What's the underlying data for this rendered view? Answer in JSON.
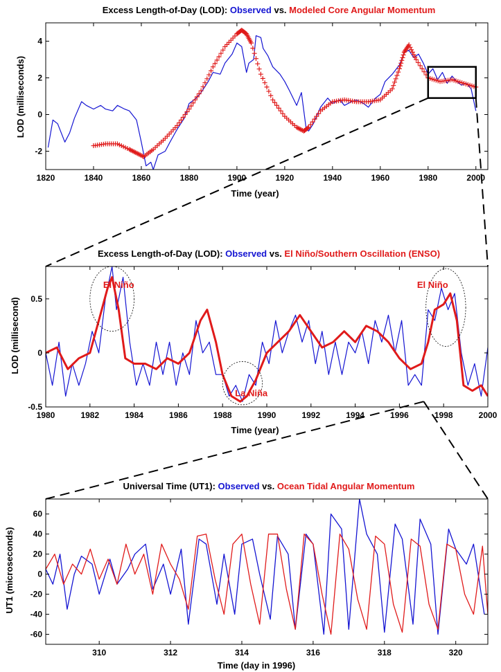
{
  "colors": {
    "observed": "#1414d2",
    "modeled": "#e01a1a",
    "axis": "#000000",
    "background": "#ffffff"
  },
  "chart_data": [
    {
      "type": "line",
      "title_prefix": "Excess Length-of-Day (LOD): ",
      "title_observed": "Observed",
      "title_mid": " vs. ",
      "title_modeled": "Modeled Core Angular Momentum",
      "xlabel": "Time (year)",
      "ylabel": "LOD (milliseconds)",
      "xlim": [
        1820,
        2005
      ],
      "ylim": [
        -3,
        5
      ],
      "xticks": [
        1820,
        1840,
        1860,
        1880,
        1900,
        1920,
        1940,
        1960,
        1980,
        2000
      ],
      "yticks": [
        -2,
        0,
        2,
        4
      ],
      "grid": false,
      "zoom_box": {
        "x": [
          1980,
          2000
        ],
        "y": [
          0.9,
          2.6
        ]
      },
      "series": [
        {
          "name": "Observed",
          "color": "#1414d2",
          "style": "line",
          "x": [
            1821,
            1823,
            1825,
            1828,
            1830,
            1832,
            1835,
            1837,
            1840,
            1843,
            1845,
            1848,
            1850,
            1853,
            1855,
            1858,
            1860,
            1862,
            1864,
            1865,
            1867,
            1870,
            1872,
            1875,
            1878,
            1880,
            1883,
            1885,
            1888,
            1890,
            1893,
            1895,
            1898,
            1900,
            1902,
            1904,
            1905,
            1907,
            1908,
            1910,
            1911,
            1913,
            1915,
            1918,
            1920,
            1922,
            1925,
            1927,
            1929,
            1930,
            1932,
            1935,
            1938,
            1940,
            1943,
            1945,
            1948,
            1950,
            1953,
            1955,
            1958,
            1960,
            1962,
            1965,
            1968,
            1970,
            1972,
            1974,
            1976,
            1978,
            1980,
            1982,
            1984,
            1986,
            1988,
            1990,
            1992,
            1994,
            1996,
            1998,
            2000
          ],
          "y": [
            -1.8,
            -0.3,
            -0.5,
            -1.5,
            -1.0,
            -0.2,
            0.7,
            0.5,
            0.3,
            0.5,
            0.3,
            0.2,
            0.5,
            0.3,
            0.2,
            -0.3,
            -1.5,
            -2.8,
            -2.6,
            -3.0,
            -2.2,
            -2.0,
            -1.5,
            -0.8,
            -0.2,
            0.6,
            0.9,
            1.2,
            1.8,
            2.3,
            2.2,
            2.8,
            3.3,
            3.9,
            3.7,
            2.3,
            2.8,
            3.0,
            4.3,
            4.2,
            3.6,
            3.2,
            2.6,
            2.2,
            1.8,
            1.3,
            0.5,
            1.2,
            -0.8,
            -0.9,
            -0.5,
            0.4,
            0.9,
            0.6,
            0.8,
            0.5,
            0.7,
            0.8,
            0.6,
            0.4,
            0.9,
            1.1,
            1.8,
            2.2,
            2.7,
            3.4,
            3.5,
            3.1,
            3.3,
            2.8,
            2.2,
            2.5,
            1.9,
            2.3,
            1.7,
            2.1,
            1.8,
            1.6,
            1.7,
            1.4,
            0.2
          ]
        },
        {
          "name": "Modeled Core Angular Momentum",
          "color": "#e01a1a",
          "style": "markers-plus",
          "x": [
            1840,
            1845,
            1850,
            1855,
            1858,
            1861,
            1865,
            1870,
            1875,
            1880,
            1885,
            1890,
            1895,
            1900,
            1902,
            1904,
            1906,
            1910,
            1915,
            1920,
            1925,
            1928,
            1930,
            1935,
            1940,
            1945,
            1950,
            1955,
            1960,
            1965,
            1968,
            1970,
            1972,
            1975,
            1980,
            1985,
            1990,
            1995,
            2000
          ],
          "y": [
            -1.7,
            -1.6,
            -1.6,
            -1.9,
            -2.1,
            -2.3,
            -1.9,
            -1.3,
            -0.6,
            0.3,
            1.3,
            2.6,
            3.7,
            4.4,
            4.6,
            4.4,
            3.9,
            2.2,
            0.8,
            -0.1,
            -0.7,
            -0.9,
            -0.7,
            0.2,
            0.7,
            0.8,
            0.7,
            0.7,
            0.8,
            1.4,
            2.5,
            3.4,
            3.8,
            3.0,
            2.0,
            1.8,
            1.9,
            1.7,
            1.5
          ]
        }
      ]
    },
    {
      "type": "line",
      "title_prefix": "Excess Length-of-Day (LOD): ",
      "title_observed": "Observed",
      "title_mid": " vs. ",
      "title_modeled": "El Niño/Southern Oscillation (ENSO)",
      "xlabel": "Time (year)",
      "ylabel": "LOD (millisecond)",
      "xlim": [
        1980,
        2000
      ],
      "ylim": [
        -0.5,
        0.8
      ],
      "xticks": [
        1980,
        1982,
        1984,
        1986,
        1988,
        1990,
        1992,
        1994,
        1996,
        1998,
        2000
      ],
      "yticks": [
        -0.5,
        0,
        0.5
      ],
      "grid": false,
      "annotations": [
        {
          "text": "El Niño",
          "x": 1983.3,
          "y": 0.6
        },
        {
          "text": "La Niña",
          "x": 1989.3,
          "y": -0.4
        },
        {
          "text": "El Niño",
          "x": 1997.5,
          "y": 0.6
        }
      ],
      "circles": [
        {
          "cx": 1983.0,
          "cy": 0.5,
          "rx": 1.0,
          "ry": 0.3
        },
        {
          "cx": 1988.9,
          "cy": -0.28,
          "rx": 0.9,
          "ry": 0.2
        },
        {
          "cx": 1998.1,
          "cy": 0.42,
          "rx": 0.9,
          "ry": 0.36
        }
      ],
      "series": [
        {
          "name": "Observed",
          "color": "#1414d2",
          "style": "line",
          "x": [
            1980.0,
            1980.3,
            1980.6,
            1980.9,
            1981.2,
            1981.5,
            1981.8,
            1982.1,
            1982.4,
            1982.7,
            1983.0,
            1983.2,
            1983.5,
            1983.8,
            1984.1,
            1984.4,
            1984.7,
            1985.0,
            1985.3,
            1985.6,
            1985.9,
            1986.2,
            1986.5,
            1986.8,
            1987.1,
            1987.4,
            1987.7,
            1988.0,
            1988.3,
            1988.6,
            1988.9,
            1989.2,
            1989.5,
            1989.8,
            1990.1,
            1990.4,
            1990.7,
            1991.0,
            1991.3,
            1991.6,
            1991.9,
            1992.2,
            1992.5,
            1992.8,
            1993.1,
            1993.4,
            1993.7,
            1994.0,
            1994.3,
            1994.6,
            1994.9,
            1995.2,
            1995.5,
            1995.8,
            1996.1,
            1996.4,
            1996.7,
            1997.0,
            1997.3,
            1997.6,
            1997.9,
            1998.2,
            1998.5,
            1998.8,
            1999.1,
            1999.4,
            1999.7,
            2000.0
          ],
          "y": [
            0.0,
            -0.3,
            0.1,
            -0.4,
            -0.1,
            -0.3,
            -0.1,
            0.2,
            0.0,
            0.5,
            0.8,
            0.4,
            0.7,
            0.1,
            -0.3,
            -0.1,
            -0.3,
            0.1,
            -0.2,
            0.1,
            -0.3,
            0.0,
            -0.2,
            0.3,
            0.0,
            0.1,
            -0.2,
            -0.2,
            -0.4,
            -0.3,
            -0.45,
            -0.2,
            -0.3,
            0.1,
            -0.1,
            0.3,
            0.0,
            0.2,
            0.35,
            0.1,
            0.3,
            -0.1,
            0.2,
            -0.2,
            0.1,
            -0.2,
            0.1,
            0.0,
            0.2,
            -0.1,
            0.3,
            0.1,
            0.35,
            0.0,
            0.3,
            -0.3,
            -0.2,
            -0.3,
            0.4,
            0.3,
            0.6,
            0.4,
            0.55,
            0.0,
            -0.3,
            -0.1,
            -0.4,
            0.05
          ]
        },
        {
          "name": "El Niño/Southern Oscillation (ENSO)",
          "color": "#e01a1a",
          "style": "line",
          "x": [
            1980.0,
            1980.5,
            1981.0,
            1981.5,
            1982.0,
            1982.4,
            1982.8,
            1983.0,
            1983.3,
            1983.6,
            1984.0,
            1984.5,
            1985.0,
            1985.5,
            1986.0,
            1986.5,
            1987.0,
            1987.3,
            1987.7,
            1988.0,
            1988.4,
            1988.8,
            1989.1,
            1989.5,
            1990.0,
            1990.5,
            1991.0,
            1991.5,
            1992.0,
            1992.5,
            1993.0,
            1993.5,
            1994.0,
            1994.5,
            1995.0,
            1995.5,
            1996.0,
            1996.5,
            1997.0,
            1997.3,
            1997.6,
            1998.0,
            1998.3,
            1998.6,
            1998.9,
            1999.3,
            1999.7,
            2000.0
          ],
          "y": [
            0.0,
            0.05,
            -0.15,
            -0.05,
            0.0,
            0.3,
            0.6,
            0.7,
            0.4,
            -0.05,
            -0.1,
            -0.1,
            -0.15,
            -0.05,
            -0.1,
            0.0,
            0.3,
            0.4,
            0.1,
            -0.2,
            -0.4,
            -0.45,
            -0.4,
            -0.25,
            0.0,
            0.1,
            0.2,
            0.35,
            0.2,
            0.05,
            0.1,
            0.2,
            0.1,
            0.25,
            0.2,
            0.1,
            -0.05,
            -0.15,
            -0.1,
            0.1,
            0.4,
            0.45,
            0.55,
            0.3,
            -0.3,
            -0.35,
            -0.3,
            -0.4
          ]
        }
      ]
    },
    {
      "type": "line",
      "title_prefix": "Universal Time (UT1): ",
      "title_observed": "Observed",
      "title_mid": " vs. ",
      "title_modeled": "Ocean Tidal Angular Momentum",
      "xlabel": "Time (day in 1996)",
      "ylabel": "UT1 (microseconds)",
      "xlim": [
        308.5,
        320.9
      ],
      "ylim": [
        -70,
        75
      ],
      "xticks": [
        310,
        312,
        314,
        316,
        318,
        320
      ],
      "yticks": [
        -60,
        -40,
        -20,
        0,
        20,
        40,
        60
      ],
      "grid": false,
      "series": [
        {
          "name": "Observed",
          "color": "#1414d2",
          "style": "line",
          "x": [
            308.5,
            308.7,
            308.9,
            309.1,
            309.3,
            309.5,
            309.8,
            310.0,
            310.3,
            310.5,
            310.8,
            311.0,
            311.3,
            311.5,
            311.8,
            312.0,
            312.3,
            312.5,
            312.8,
            313.0,
            313.3,
            313.5,
            313.8,
            314.0,
            314.3,
            314.5,
            314.8,
            315.0,
            315.3,
            315.5,
            315.8,
            316.0,
            316.3,
            316.5,
            316.8,
            317.0,
            317.3,
            317.5,
            317.8,
            318.0,
            318.3,
            318.5,
            318.8,
            319.0,
            319.3,
            319.5,
            319.8,
            320.0,
            320.3,
            320.5,
            320.8
          ],
          "y": [
            5,
            -10,
            20,
            -35,
            0,
            18,
            10,
            -20,
            15,
            -10,
            5,
            20,
            30,
            -15,
            10,
            -20,
            25,
            -50,
            35,
            30,
            -30,
            20,
            -40,
            30,
            35,
            0,
            -45,
            38,
            20,
            -55,
            40,
            30,
            -60,
            60,
            45,
            -55,
            75,
            40,
            20,
            -58,
            50,
            35,
            -50,
            55,
            30,
            -60,
            45,
            25,
            10,
            30,
            -40
          ]
        },
        {
          "name": "Ocean Tidal Angular Momentum",
          "color": "#e01a1a",
          "style": "line",
          "x": [
            308.5,
            308.75,
            309.0,
            309.25,
            309.5,
            309.75,
            310.0,
            310.25,
            310.5,
            310.75,
            311.0,
            311.25,
            311.5,
            311.75,
            312.0,
            312.25,
            312.5,
            312.75,
            313.0,
            313.25,
            313.5,
            313.75,
            314.0,
            314.25,
            314.5,
            314.75,
            315.0,
            315.25,
            315.5,
            315.75,
            316.0,
            316.25,
            316.5,
            316.75,
            317.0,
            317.25,
            317.5,
            317.75,
            318.0,
            318.25,
            318.5,
            318.75,
            319.0,
            319.25,
            319.5,
            319.75,
            320.0,
            320.25,
            320.5,
            320.75,
            320.9
          ],
          "y": [
            5,
            20,
            -10,
            10,
            0,
            25,
            -5,
            15,
            -10,
            30,
            0,
            20,
            -20,
            30,
            10,
            -5,
            -35,
            38,
            40,
            -5,
            -40,
            30,
            40,
            -10,
            -50,
            40,
            40,
            -15,
            -55,
            40,
            30,
            -20,
            -60,
            40,
            25,
            -25,
            -55,
            38,
            30,
            -30,
            -58,
            35,
            28,
            -30,
            -55,
            30,
            25,
            -20,
            -40,
            28,
            -40
          ]
        }
      ]
    }
  ]
}
